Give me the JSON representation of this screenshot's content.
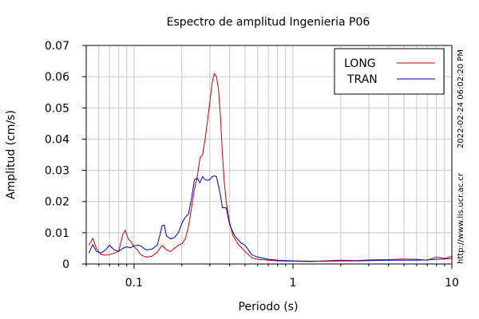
{
  "chart_data": {
    "type": "line",
    "title": "Espectro de amplitud Ingenieria P06",
    "xlabel": "Periodo (s)",
    "ylabel": "Amplitud (cm/s)",
    "xscale": "log",
    "xlim": [
      0.05,
      10
    ],
    "ylim": [
      0,
      0.07
    ],
    "grid": true,
    "legend_position": "top-right",
    "x_ticks": [
      {
        "value": 0.1,
        "label": "0.1"
      },
      {
        "value": 1,
        "label": "1"
      },
      {
        "value": 10,
        "label": "10"
      }
    ],
    "y_ticks": [
      {
        "value": 0,
        "label": "0"
      },
      {
        "value": 0.01,
        "label": "0.01"
      },
      {
        "value": 0.02,
        "label": "0.02"
      },
      {
        "value": 0.03,
        "label": "0.03"
      },
      {
        "value": 0.04,
        "label": "0.04"
      },
      {
        "value": 0.05,
        "label": "0.05"
      },
      {
        "value": 0.06,
        "label": "0.06"
      },
      {
        "value": 0.07,
        "label": "0.07"
      }
    ],
    "series": [
      {
        "name": "LONG",
        "color": "#cc0000",
        "x": [
          0.052,
          0.055,
          0.058,
          0.062,
          0.066,
          0.07,
          0.075,
          0.08,
          0.085,
          0.088,
          0.092,
          0.096,
          0.1,
          0.105,
          0.11,
          0.115,
          0.12,
          0.13,
          0.14,
          0.15,
          0.16,
          0.17,
          0.18,
          0.19,
          0.2,
          0.21,
          0.22,
          0.23,
          0.24,
          0.25,
          0.26,
          0.27,
          0.28,
          0.29,
          0.3,
          0.31,
          0.32,
          0.33,
          0.34,
          0.35,
          0.36,
          0.37,
          0.38,
          0.4,
          0.42,
          0.45,
          0.5,
          0.55,
          0.6,
          0.7,
          0.8,
          1.0,
          1.3,
          1.6,
          2.0,
          2.5,
          3.0,
          4.0,
          5.0,
          6.0,
          7.0,
          8.0,
          9.0,
          10.0
        ],
        "y": [
          0.006,
          0.0082,
          0.005,
          0.003,
          0.0028,
          0.003,
          0.0035,
          0.004,
          0.0095,
          0.0108,
          0.008,
          0.007,
          0.0055,
          0.0045,
          0.003,
          0.0025,
          0.0022,
          0.0025,
          0.0038,
          0.006,
          0.0045,
          0.004,
          0.005,
          0.006,
          0.0065,
          0.008,
          0.012,
          0.018,
          0.024,
          0.028,
          0.034,
          0.035,
          0.04,
          0.046,
          0.052,
          0.058,
          0.061,
          0.06,
          0.056,
          0.047,
          0.035,
          0.026,
          0.02,
          0.013,
          0.009,
          0.0065,
          0.004,
          0.002,
          0.0015,
          0.0012,
          0.001,
          0.0009,
          0.0008,
          0.001,
          0.0012,
          0.0011,
          0.0013,
          0.0014,
          0.0016,
          0.0015,
          0.0012,
          0.0022,
          0.0018,
          0.0025
        ]
      },
      {
        "name": "TRAN",
        "color": "#0000b0",
        "x": [
          0.052,
          0.055,
          0.058,
          0.062,
          0.066,
          0.07,
          0.075,
          0.08,
          0.085,
          0.09,
          0.095,
          0.1,
          0.105,
          0.11,
          0.115,
          0.12,
          0.13,
          0.14,
          0.145,
          0.15,
          0.155,
          0.16,
          0.17,
          0.18,
          0.19,
          0.2,
          0.21,
          0.22,
          0.23,
          0.24,
          0.25,
          0.26,
          0.27,
          0.28,
          0.29,
          0.3,
          0.31,
          0.32,
          0.33,
          0.34,
          0.35,
          0.36,
          0.38,
          0.4,
          0.43,
          0.47,
          0.5,
          0.55,
          0.6,
          0.7,
          0.8,
          1.0,
          1.3,
          1.6,
          2.0,
          2.5,
          3.0,
          4.0,
          5.0,
          6.0,
          7.0,
          8.0,
          9.0,
          10.0
        ],
        "y": [
          0.0035,
          0.0062,
          0.004,
          0.0035,
          0.0045,
          0.006,
          0.0045,
          0.004,
          0.005,
          0.0055,
          0.0052,
          0.0058,
          0.006,
          0.0058,
          0.005,
          0.0045,
          0.0048,
          0.006,
          0.009,
          0.0122,
          0.0125,
          0.009,
          0.008,
          0.0085,
          0.01,
          0.013,
          0.015,
          0.016,
          0.021,
          0.027,
          0.0275,
          0.026,
          0.028,
          0.027,
          0.0268,
          0.027,
          0.028,
          0.0282,
          0.028,
          0.025,
          0.022,
          0.018,
          0.018,
          0.0125,
          0.009,
          0.0068,
          0.006,
          0.003,
          0.0022,
          0.0015,
          0.0012,
          0.001,
          0.0009,
          0.0009,
          0.001,
          0.001,
          0.0011,
          0.0012,
          0.0012,
          0.0012,
          0.0013,
          0.0015,
          0.0016,
          0.0018
        ]
      }
    ]
  },
  "side": {
    "timestamp": "2022-02-24 06:02:20 PM",
    "url": "http://www.lis.ucr.ac.cr"
  }
}
